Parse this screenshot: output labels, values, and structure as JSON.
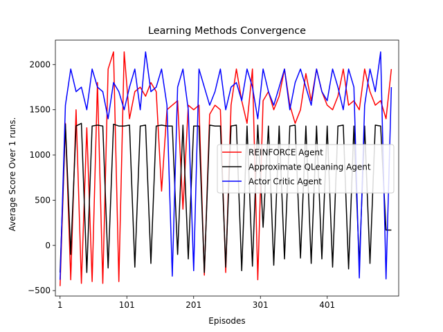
{
  "chart_data": {
    "type": "line",
    "title": "Learning Methods Convergence",
    "xlabel": "Episodes",
    "ylabel": "Average Score Over 1 runs.",
    "xlim": [
      -6,
      508
    ],
    "ylim": [
      -560,
      2270
    ],
    "x_ticks": [
      1,
      101,
      201,
      301,
      401
    ],
    "x_tick_labels": [
      "1",
      "101",
      "201",
      "301",
      "401"
    ],
    "y_ticks": [
      -500,
      0,
      500,
      1000,
      1500,
      2000
    ],
    "y_tick_labels": [
      "−500",
      "0",
      "500",
      "1000",
      "1500",
      "2000"
    ],
    "x": [
      1,
      9,
      17,
      25,
      33,
      41,
      49,
      57,
      65,
      73,
      81,
      89,
      97,
      105,
      113,
      121,
      129,
      137,
      145,
      153,
      161,
      169,
      177,
      185,
      193,
      201,
      209,
      217,
      225,
      233,
      241,
      249,
      257,
      265,
      273,
      281,
      289,
      297,
      305,
      313,
      321,
      329,
      337,
      345,
      353,
      361,
      369,
      377,
      385,
      393,
      401,
      409,
      417,
      425,
      433,
      441,
      449,
      457,
      465,
      473,
      481,
      489,
      497
    ],
    "series": [
      {
        "name": "REINFORCE Agent",
        "color": "#ff0000",
        "values": [
          -450,
          1350,
          -380,
          1500,
          -420,
          1300,
          -400,
          1800,
          -420,
          1950,
          2140,
          -400,
          2140,
          1400,
          1700,
          1750,
          1650,
          1800,
          1700,
          600,
          1500,
          1550,
          1600,
          400,
          1550,
          1500,
          1550,
          -330,
          1450,
          1550,
          1500,
          -300,
          1550,
          1950,
          1600,
          1350,
          1950,
          -380,
          1600,
          1700,
          1500,
          1650,
          1950,
          1550,
          1350,
          1500,
          1900,
          1600,
          1950,
          1700,
          1550,
          1500,
          1650,
          1950,
          1550,
          1600,
          1500,
          1950,
          1700,
          1550,
          1600,
          1400,
          1950
        ]
      },
      {
        "name": "Approximate QLeaning Agent",
        "color": "#000000",
        "values": [
          -300,
          1340,
          -100,
          1320,
          1350,
          -300,
          1320,
          1330,
          1320,
          -250,
          1340,
          1320,
          1320,
          1330,
          -240,
          1320,
          1330,
          -200,
          1320,
          1330,
          1320,
          1320,
          -100,
          1330,
          -150,
          1320,
          1320,
          -300,
          1330,
          1320,
          1320,
          -240,
          1320,
          1330,
          -280,
          1320,
          -230,
          1330,
          200,
          1320,
          -220,
          1320,
          -150,
          1320,
          1330,
          -140,
          1320,
          -200,
          1320,
          -150,
          1320,
          -240,
          1320,
          1330,
          -260,
          1320,
          -220,
          1320,
          -200,
          1330,
          1320,
          170,
          170
        ]
      },
      {
        "name": "Actor Critic Agent",
        "color": "#0000ff",
        "values": [
          -380,
          1550,
          1950,
          1700,
          1750,
          1500,
          1950,
          1750,
          1700,
          1400,
          1800,
          1700,
          1500,
          1750,
          1950,
          1500,
          2140,
          1700,
          1750,
          1950,
          1550,
          -340,
          1750,
          1950,
          1500,
          -280,
          1950,
          1750,
          1550,
          1700,
          1950,
          1500,
          1750,
          1800,
          1600,
          1950,
          1750,
          1400,
          1950,
          1700,
          1550,
          1750,
          1950,
          1500,
          1800,
          1950,
          1750,
          1550,
          1950,
          1700,
          1600,
          1950,
          1750,
          1500,
          1950,
          1750,
          -360,
          1550,
          1950,
          1700,
          2140,
          -370,
          1750
        ]
      }
    ],
    "legend_location": "center-right",
    "grid": false
  }
}
